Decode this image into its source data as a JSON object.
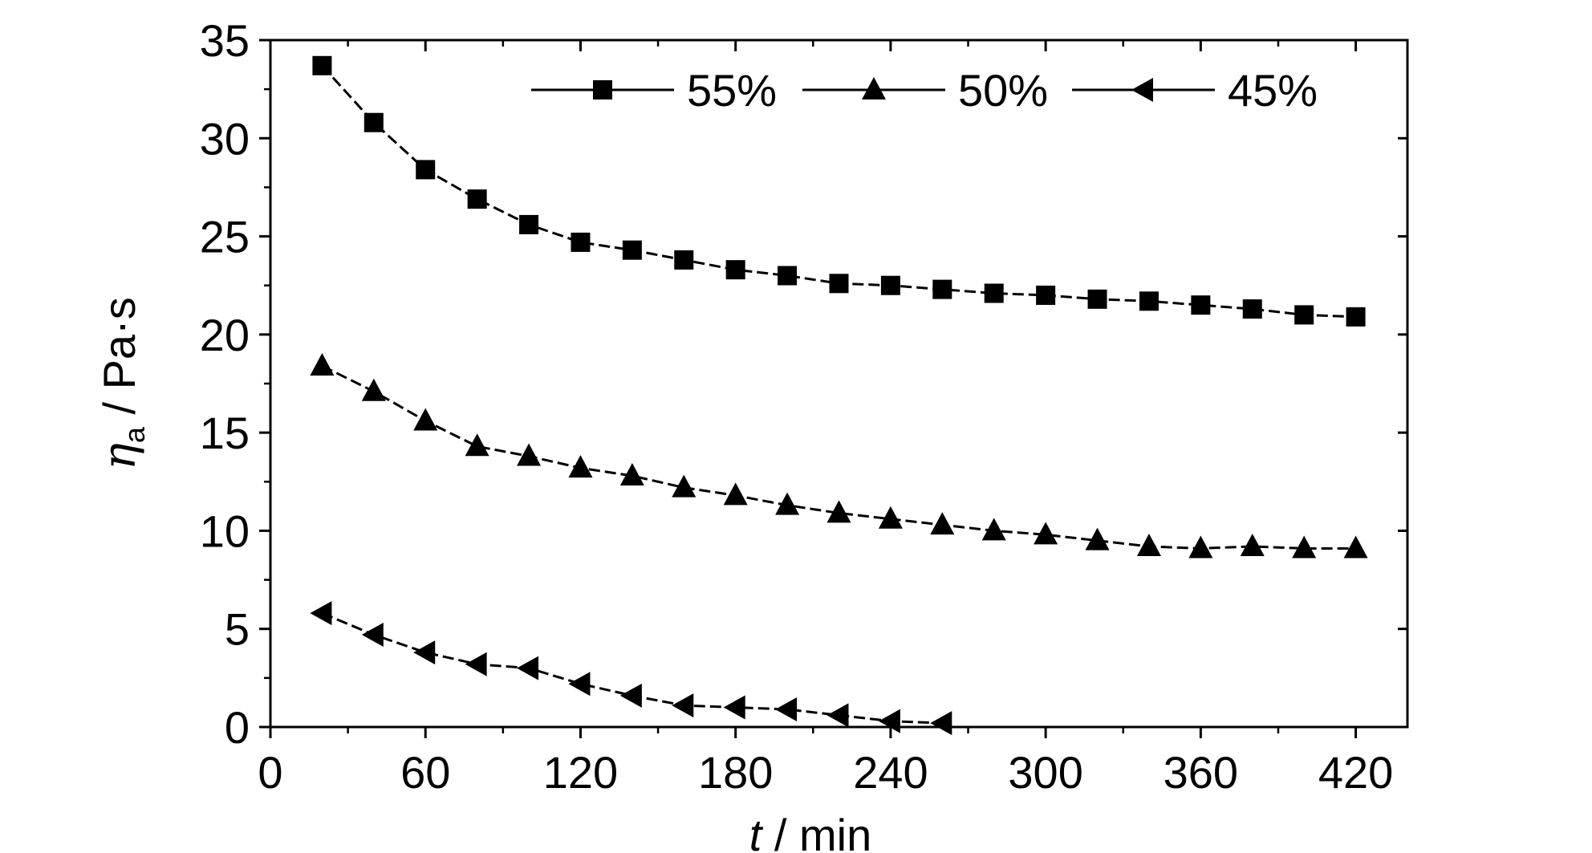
{
  "chart_data": {
    "type": "line",
    "xlabel": {
      "italic": "t",
      "rest": " / min"
    },
    "ylabel": {
      "symbol": "η",
      "subscript": "a",
      "rest": " / Pa·s"
    },
    "xlim": [
      0,
      440
    ],
    "ylim": [
      0,
      35
    ],
    "x_ticks": [
      0,
      60,
      120,
      180,
      240,
      300,
      360,
      420
    ],
    "y_ticks": [
      0,
      5,
      10,
      15,
      20,
      25,
      30,
      35
    ],
    "x_minor_step": 30,
    "y_minor_step": 2.5,
    "grid": false,
    "legend_position": "top",
    "series": [
      {
        "name": "55%",
        "marker": "square",
        "x": [
          20,
          40,
          60,
          80,
          100,
          120,
          140,
          160,
          180,
          200,
          220,
          240,
          260,
          280,
          300,
          320,
          340,
          360,
          380,
          400,
          420
        ],
        "y": [
          33.7,
          30.8,
          28.4,
          26.9,
          25.6,
          24.7,
          24.3,
          23.8,
          23.3,
          23.0,
          22.6,
          22.5,
          22.3,
          22.1,
          22.0,
          21.8,
          21.7,
          21.5,
          21.3,
          21.0,
          20.9
        ]
      },
      {
        "name": "50%",
        "marker": "triangle-up",
        "x": [
          20,
          40,
          60,
          80,
          100,
          120,
          140,
          160,
          180,
          200,
          220,
          240,
          260,
          280,
          300,
          320,
          340,
          360,
          380,
          400,
          420
        ],
        "y": [
          18.4,
          17.1,
          15.6,
          14.3,
          13.8,
          13.2,
          12.8,
          12.2,
          11.8,
          11.3,
          10.9,
          10.6,
          10.3,
          10.0,
          9.8,
          9.5,
          9.2,
          9.1,
          9.2,
          9.1,
          9.1
        ]
      },
      {
        "name": "45%",
        "marker": "triangle-left",
        "x": [
          20,
          40,
          60,
          80,
          100,
          120,
          140,
          160,
          180,
          200,
          220,
          240,
          260
        ],
        "y": [
          5.8,
          4.7,
          3.8,
          3.2,
          3.0,
          2.2,
          1.6,
          1.1,
          1.0,
          0.9,
          0.6,
          0.3,
          0.2
        ]
      }
    ]
  }
}
